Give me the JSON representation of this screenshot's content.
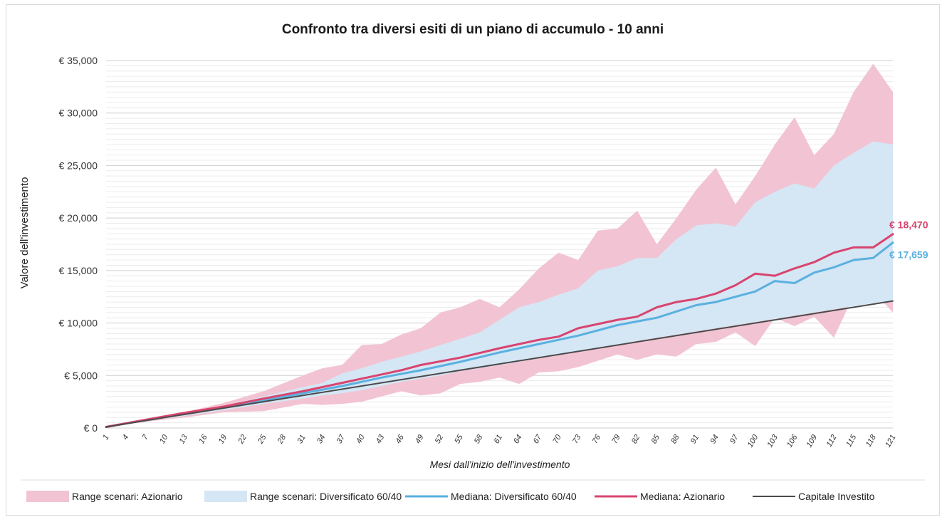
{
  "chart_data": {
    "type": "area",
    "title": "Confronto tra diversi esiti di un piano di accumulo - 10 anni",
    "xlabel": "Mesi dall'inizio dell'investimento",
    "ylabel": "Valore dell'investimento",
    "xlim": [
      1,
      121
    ],
    "ylim": [
      0,
      35000
    ],
    "grid": true,
    "legend_position": "bottom",
    "y_ticks": [
      {
        "value": 0,
        "label": "€ 0"
      },
      {
        "value": 5000,
        "label": "€ 5,000"
      },
      {
        "value": 10000,
        "label": "€ 10,000"
      },
      {
        "value": 15000,
        "label": "€ 15,000"
      },
      {
        "value": 20000,
        "label": "€ 20,000"
      },
      {
        "value": 25000,
        "label": "€ 25,000"
      },
      {
        "value": 30000,
        "label": "€ 30,000"
      },
      {
        "value": 35000,
        "label": "€ 35,000"
      }
    ],
    "x_ticks": [
      "1",
      "4",
      "7",
      "10",
      "13",
      "16",
      "19",
      "22",
      "25",
      "28",
      "31",
      "34",
      "37",
      "40",
      "43",
      "46",
      "49",
      "52",
      "55",
      "58",
      "61",
      "64",
      "67",
      "70",
      "73",
      "76",
      "79",
      "82",
      "85",
      "88",
      "91",
      "94",
      "97",
      "100",
      "103",
      "106",
      "109",
      "112",
      "115",
      "118",
      "121"
    ],
    "series": [
      {
        "name": "Range scenari: Azionario",
        "kind": "range",
        "color": "#f2c4d3",
        "x": [
          1,
          7,
          13,
          19,
          25,
          31,
          34,
          37,
          40,
          43,
          46,
          49,
          52,
          55,
          58,
          61,
          64,
          67,
          70,
          73,
          76,
          79,
          82,
          85,
          88,
          91,
          94,
          97,
          100,
          103,
          106,
          109,
          112,
          115,
          118,
          121
        ],
        "upper": [
          100,
          800,
          1500,
          2400,
          3500,
          5000,
          5700,
          6000,
          7900,
          8000,
          8900,
          9500,
          11000,
          11500,
          12300,
          11500,
          13200,
          15200,
          16700,
          16000,
          18800,
          19000,
          20700,
          17500,
          20000,
          22700,
          24800,
          21300,
          24000,
          27000,
          29600,
          26000,
          28000,
          32000,
          34700,
          32000
        ],
        "lower": [
          100,
          600,
          1000,
          1500,
          1600,
          2300,
          2200,
          2300,
          2500,
          3000,
          3500,
          3100,
          3300,
          4200,
          4400,
          4800,
          4200,
          5300,
          5400,
          5800,
          6400,
          7000,
          6500,
          7000,
          6800,
          8000,
          8200,
          9100,
          7800,
          10500,
          9700,
          10600,
          8600,
          12600,
          13000,
          11000
        ]
      },
      {
        "name": "Range scenari: Diversificato 60/40",
        "kind": "range",
        "color": "#d5e6f4",
        "x": [
          1,
          7,
          13,
          19,
          25,
          31,
          34,
          37,
          40,
          43,
          46,
          49,
          52,
          55,
          58,
          61,
          64,
          67,
          70,
          73,
          76,
          79,
          82,
          85,
          88,
          91,
          94,
          97,
          100,
          103,
          106,
          109,
          112,
          115,
          118,
          121
        ],
        "upper": [
          100,
          750,
          1400,
          2100,
          3000,
          3900,
          4300,
          5200,
          5700,
          6300,
          6800,
          7300,
          7900,
          8500,
          9100,
          10300,
          11500,
          12000,
          12700,
          13300,
          15000,
          15400,
          16200,
          16200,
          18000,
          19300,
          19500,
          19200,
          21500,
          22500,
          23300,
          22800,
          25000,
          26200,
          27300,
          27000
        ],
        "lower": [
          100,
          650,
          1150,
          1700,
          2300,
          2800,
          3100,
          3300,
          3600,
          4000,
          4400,
          4700,
          5000,
          5400,
          5700,
          6000,
          6300,
          6700,
          7000,
          7300,
          7600,
          7900,
          8300,
          8600,
          8900,
          9200,
          9500,
          9800,
          10100,
          10400,
          10700,
          11000,
          11300,
          11600,
          11900,
          12100
        ]
      },
      {
        "name": "Mediana: Diversificato 60/40",
        "kind": "line",
        "color": "#5ab0e0",
        "x": [
          1,
          7,
          13,
          19,
          25,
          31,
          37,
          43,
          49,
          55,
          61,
          67,
          73,
          79,
          85,
          91,
          94,
          97,
          100,
          103,
          106,
          109,
          112,
          115,
          118,
          121
        ],
        "values": [
          100,
          750,
          1400,
          1950,
          2600,
          3300,
          4000,
          4800,
          5500,
          6300,
          7200,
          8000,
          8800,
          9800,
          10500,
          11700,
          12000,
          12500,
          13000,
          14000,
          13800,
          14800,
          15300,
          16000,
          16200,
          17659
        ]
      },
      {
        "name": "Mediana: Azionario",
        "kind": "line",
        "color": "#d9446f",
        "x": [
          1,
          7,
          13,
          19,
          25,
          31,
          37,
          43,
          46,
          49,
          55,
          61,
          67,
          70,
          73,
          79,
          82,
          85,
          88,
          91,
          94,
          97,
          100,
          103,
          106,
          109,
          112,
          115,
          118,
          121
        ],
        "values": [
          100,
          780,
          1450,
          2050,
          2800,
          3500,
          4300,
          5100,
          5500,
          6000,
          6700,
          7600,
          8400,
          8700,
          9500,
          10300,
          10600,
          11500,
          12000,
          12300,
          12800,
          13600,
          14700,
          14500,
          15200,
          15800,
          16700,
          17200,
          17200,
          18470
        ]
      },
      {
        "name": "Capitale Investito",
        "kind": "line",
        "color": "#4a4a4a",
        "x": [
          1,
          121
        ],
        "values": [
          100,
          12100
        ]
      }
    ],
    "end_labels": [
      {
        "series": "Mediana: Azionario",
        "text": "€ 18,470",
        "value": 18470,
        "color": "#d9446f"
      },
      {
        "series": "Mediana: Diversificato 60/40",
        "text": "€ 17,659",
        "value": 17659,
        "color": "#5ab0e0"
      }
    ]
  }
}
